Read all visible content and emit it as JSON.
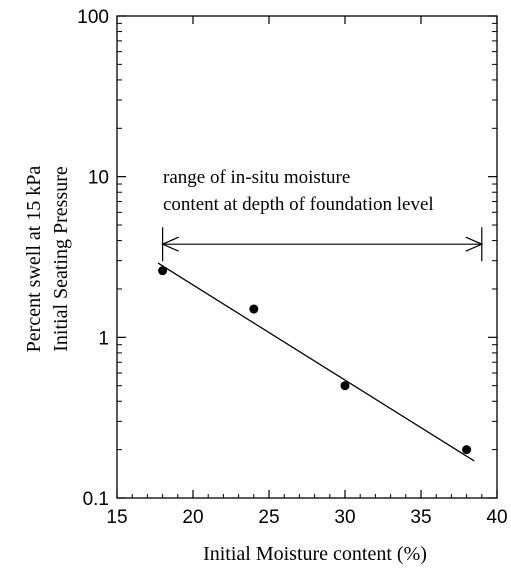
{
  "chart_data": {
    "type": "scatter",
    "xlabel": "Initial Moisture content (%)",
    "ylabel_lines": [
      "Percent swell at 15 kPa",
      "Initial Seating Pressure"
    ],
    "xlim": [
      15,
      40
    ],
    "ylim": [
      0.1,
      100
    ],
    "yscale": "log",
    "x_ticks": [
      15,
      20,
      25,
      30,
      35,
      40
    ],
    "y_ticks": [
      0.1,
      1,
      10,
      100
    ],
    "x_tick_labels": [
      "15",
      "20",
      "25",
      "30",
      "35",
      "40"
    ],
    "y_tick_labels": [
      "0.1",
      "1",
      "10",
      "100"
    ],
    "points": [
      {
        "x": 18,
        "y": 2.6
      },
      {
        "x": 24,
        "y": 1.5
      },
      {
        "x": 30,
        "y": 0.5
      },
      {
        "x": 38,
        "y": 0.2
      }
    ],
    "trend_line": {
      "x": [
        17.7,
        38.5
      ],
      "y": [
        2.9,
        0.17
      ]
    },
    "range_annotation": {
      "text_lines": [
        "range of in-situ moisture",
        " content at depth of foundation level"
      ],
      "x_from": 18,
      "x_to": 39,
      "y": 3.8
    },
    "grid": false,
    "legend": "none"
  }
}
